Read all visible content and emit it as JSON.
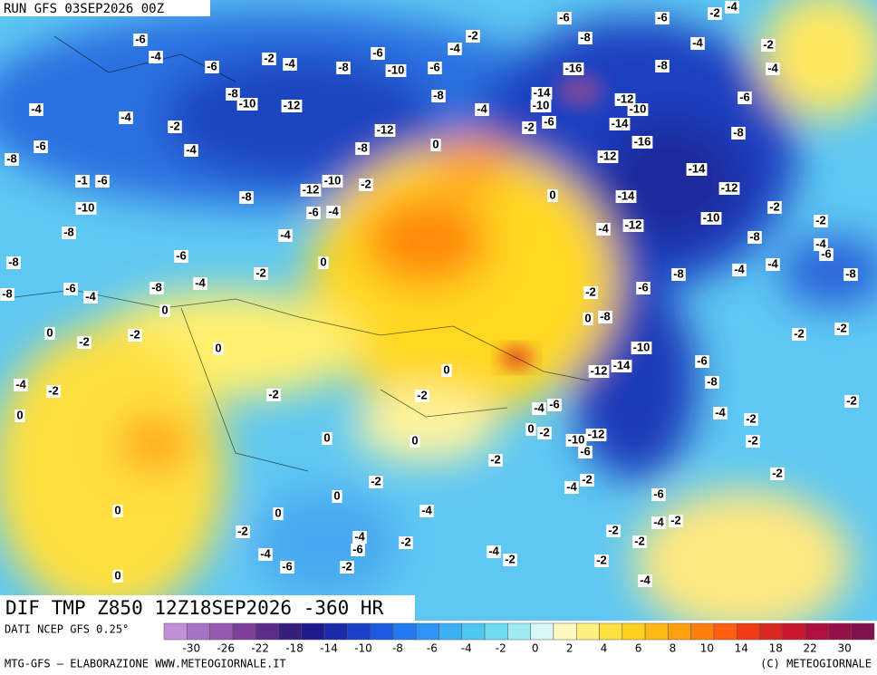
{
  "header": {
    "run": "RUN GFS 03SEP2026 00Z"
  },
  "map": {
    "title": "DIF TMP Z850 12Z18SEP2026 -360 HR",
    "contour_labels": [
      -6,
      -6,
      -2,
      -4,
      -2,
      -6,
      -8,
      -4,
      -2,
      -4,
      -2,
      -4,
      -6,
      -6,
      -4,
      -8,
      -10,
      -6,
      -16,
      -8,
      -4,
      -8,
      -10,
      -12,
      -8,
      -14,
      -10,
      -12,
      -10,
      -6,
      -4,
      -4,
      -2,
      -4,
      -2,
      -6,
      -14,
      -12,
      0,
      -6,
      -8,
      -16,
      -8,
      -12,
      -4,
      -8,
      -14,
      -1,
      -6,
      -12,
      -10,
      -2,
      0,
      -14,
      -12,
      -8,
      -10,
      -6,
      -4,
      -2,
      -10,
      -4,
      -12,
      -2,
      -8,
      -4,
      -8,
      -4,
      -6,
      -6,
      -8,
      0,
      -2,
      -4,
      -4,
      -8,
      -8,
      -6,
      -4,
      -8,
      -4,
      -2,
      -6,
      -8,
      0,
      0,
      -8,
      -2,
      0,
      -2,
      -2,
      0,
      -2,
      -10,
      -6,
      0,
      -12,
      -14,
      -8,
      -4,
      -2,
      -2,
      -2,
      -6,
      -4,
      -2,
      0,
      -4,
      -2,
      0,
      -2,
      0,
      -12,
      -10,
      -6,
      0,
      -2,
      -2,
      -2,
      -4,
      -2,
      -2,
      0,
      -6,
      0,
      0,
      -4,
      -4,
      -2,
      -2,
      -4,
      -2,
      -2,
      -2,
      -4,
      -6,
      -4,
      -2,
      -6,
      -2,
      -2,
      0,
      -4
    ]
  },
  "legend": {
    "source": "DATI NCEP GFS 0.25°",
    "colors": [
      "#c38fd8",
      "#a873c4",
      "#9459b0",
      "#7d3f9a",
      "#5c2c8a",
      "#3a1e7c",
      "#1f1a8c",
      "#1a2aa8",
      "#1a40c8",
      "#1e5ae0",
      "#2478f0",
      "#2e94f5",
      "#3cb0f5",
      "#4ec8f0",
      "#6edcf0",
      "#a0ecf4",
      "#d8f8f8",
      "#fff8c0",
      "#fff080",
      "#ffe040",
      "#ffd020",
      "#ffb818",
      "#ffa010",
      "#ff8010",
      "#ff6010",
      "#f03c14",
      "#d82820",
      "#c81830",
      "#b01040",
      "#981048",
      "#801050"
    ],
    "ticks": [
      -30,
      -26,
      -22,
      -18,
      -14,
      -10,
      -8,
      -6,
      -4,
      -2,
      0,
      2,
      4,
      6,
      8,
      10,
      14,
      18,
      22,
      30
    ]
  },
  "footer": {
    "left": "MTG-GFS – ELABORAZIONE WWW.METEOGIORNALE.IT",
    "right": "(C) METEOGIORNALE"
  }
}
